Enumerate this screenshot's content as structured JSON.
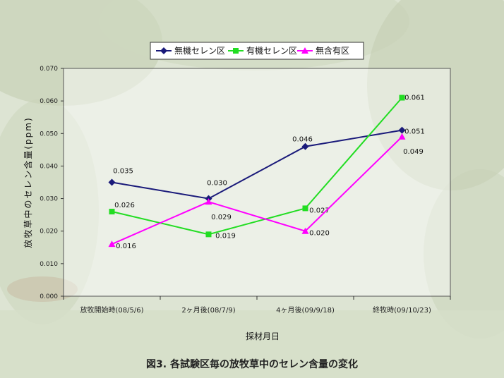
{
  "caption": "図3. 各試験区毎の放牧草中のセレン含量の変化",
  "chart_data": {
    "type": "line",
    "xlabel": "採材月日",
    "ylabel": "放牧草中のセレン含量(ppm)",
    "categories": [
      "放牧開始時(08/5/6)",
      "2ヶ月後(08/7/9)",
      "4ヶ月後(09/9/18)",
      "終牧時(09/10/23)"
    ],
    "ylim": [
      0,
      0.07
    ],
    "yticks": [
      "0.000",
      "0.010",
      "0.020",
      "0.030",
      "0.040",
      "0.050",
      "0.060",
      "0.070"
    ],
    "legend_position": "top",
    "grid": false,
    "series": [
      {
        "name": "無機セレン区",
        "values": [
          0.035,
          0.03,
          0.046,
          0.051
        ],
        "labels": [
          "0.035",
          "0.030",
          "0.046",
          "0.051"
        ],
        "color": "#1a1a7a",
        "marker": "diamond"
      },
      {
        "name": "有機セレン区",
        "values": [
          0.026,
          0.019,
          0.027,
          0.061
        ],
        "labels": [
          "0.026",
          "0.019",
          "0.027",
          "0.061"
        ],
        "color": "#22dd22",
        "marker": "square"
      },
      {
        "name": "無含有区",
        "values": [
          0.016,
          0.029,
          0.02,
          0.049
        ],
        "labels": [
          "0.016",
          "0.029",
          "0.020",
          "0.049"
        ],
        "color": "#ff00ff",
        "marker": "triangle"
      }
    ]
  }
}
